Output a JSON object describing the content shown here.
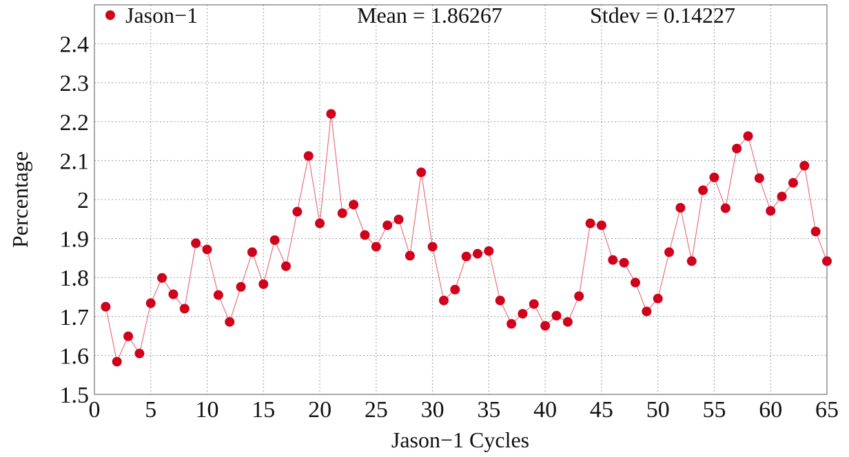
{
  "chart_data": {
    "type": "line",
    "legend_label": "Jason−1",
    "annotations": [
      "Mean = 1.86267",
      "Stdev = 0.14227"
    ],
    "x_label": "Jason−1 Cycles",
    "y_label": "Percentage",
    "x": [
      1,
      2,
      3,
      4,
      5,
      6,
      7,
      8,
      9,
      10,
      11,
      12,
      13,
      14,
      15,
      16,
      17,
      18,
      19,
      20,
      21,
      22,
      23,
      24,
      25,
      26,
      27,
      28,
      29,
      30,
      31,
      32,
      33,
      34,
      35,
      36,
      37,
      38,
      39,
      40,
      41,
      42,
      43,
      44,
      45,
      46,
      47,
      48,
      49,
      50,
      51,
      52,
      53,
      54,
      55,
      56,
      57,
      58,
      59,
      60,
      61,
      62,
      63,
      64,
      65
    ],
    "series": [
      {
        "name": "Jason−1",
        "color": "#d0021b",
        "line_color": "#e8707c",
        "values": [
          1.725,
          1.584,
          1.649,
          1.605,
          1.734,
          1.799,
          1.757,
          1.72,
          1.888,
          1.872,
          1.755,
          1.686,
          1.776,
          1.865,
          1.783,
          1.896,
          1.829,
          1.969,
          2.112,
          1.939,
          2.22,
          1.965,
          1.987,
          1.909,
          1.879,
          1.934,
          1.949,
          1.856,
          2.07,
          1.879,
          1.741,
          1.769,
          1.854,
          1.861,
          1.868,
          1.741,
          1.681,
          1.707,
          1.732,
          1.676,
          1.702,
          1.686,
          1.752,
          1.939,
          1.934,
          1.845,
          1.838,
          1.787,
          1.713,
          1.746,
          1.865,
          1.979,
          1.842,
          2.024,
          2.057,
          1.978,
          2.131,
          2.163,
          2.055,
          1.971,
          2.008,
          2.043,
          2.087,
          1.918,
          1.842
        ]
      }
    ],
    "xlim": [
      0,
      65
    ],
    "xticks": [
      0,
      5,
      10,
      15,
      20,
      25,
      30,
      35,
      40,
      45,
      50,
      55,
      60,
      65
    ],
    "ylim": [
      1.5,
      2.5
    ],
    "yticks": [
      1.5,
      1.6,
      1.7,
      1.8,
      1.9,
      2,
      2.1,
      2.2,
      2.3,
      2.4
    ],
    "grid": true
  }
}
